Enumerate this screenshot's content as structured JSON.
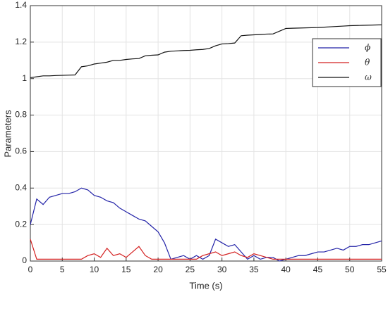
{
  "chart_data": {
    "type": "line",
    "xlabel": "Time (s)",
    "ylabel": "Parameters",
    "x": [
      0,
      1,
      2,
      3,
      4,
      5,
      6,
      7,
      8,
      9,
      10,
      11,
      12,
      13,
      14,
      15,
      16,
      17,
      18,
      19,
      20,
      21,
      22,
      23,
      24,
      25,
      26,
      27,
      28,
      29,
      30,
      31,
      32,
      33,
      34,
      35,
      36,
      37,
      38,
      39,
      40,
      41,
      42,
      43,
      44,
      45,
      46,
      47,
      48,
      49,
      50,
      51,
      52,
      53,
      54,
      55
    ],
    "series": [
      {
        "name": "ϕ",
        "color": "#2323a8",
        "values": [
          0.2,
          0.34,
          0.31,
          0.35,
          0.36,
          0.37,
          0.37,
          0.38,
          0.4,
          0.39,
          0.36,
          0.35,
          0.33,
          0.32,
          0.29,
          0.27,
          0.25,
          0.23,
          0.22,
          0.19,
          0.16,
          0.1,
          0.01,
          0.02,
          0.03,
          0.01,
          0.03,
          0.01,
          0.03,
          0.12,
          0.1,
          0.08,
          0.09,
          0.05,
          0.01,
          0.03,
          0.01,
          0.02,
          0.02,
          0.0,
          0.01,
          0.02,
          0.03,
          0.03,
          0.04,
          0.05,
          0.05,
          0.06,
          0.07,
          0.06,
          0.08,
          0.08,
          0.09,
          0.09,
          0.1,
          0.11
        ]
      },
      {
        "name": "θ",
        "color": "#d42020",
        "values": [
          0.12,
          0.01,
          0.01,
          0.01,
          0.01,
          0.01,
          0.01,
          0.01,
          0.01,
          0.03,
          0.04,
          0.02,
          0.07,
          0.03,
          0.04,
          0.02,
          0.05,
          0.08,
          0.03,
          0.01,
          0.01,
          0.01,
          0.01,
          0.01,
          0.01,
          0.01,
          0.01,
          0.03,
          0.04,
          0.05,
          0.03,
          0.04,
          0.05,
          0.03,
          0.02,
          0.04,
          0.03,
          0.02,
          0.01,
          0.01,
          0.01,
          0.01,
          0.01,
          0.01,
          0.01,
          0.01,
          0.01,
          0.01,
          0.01,
          0.01,
          0.01,
          0.01,
          0.01,
          0.01,
          0.01,
          0.01
        ]
      },
      {
        "name": "ω",
        "color": "#111111",
        "values": [
          1.005,
          1.01,
          1.015,
          1.015,
          1.017,
          1.018,
          1.019,
          1.02,
          1.065,
          1.07,
          1.08,
          1.085,
          1.09,
          1.1,
          1.1,
          1.105,
          1.108,
          1.11,
          1.125,
          1.128,
          1.13,
          1.145,
          1.15,
          1.152,
          1.154,
          1.155,
          1.158,
          1.16,
          1.165,
          1.18,
          1.19,
          1.192,
          1.195,
          1.235,
          1.238,
          1.24,
          1.242,
          1.244,
          1.245,
          1.26,
          1.275,
          1.276,
          1.277,
          1.278,
          1.279,
          1.28,
          1.282,
          1.284,
          1.286,
          1.288,
          1.29,
          1.291,
          1.292,
          1.293,
          1.294,
          1.295
        ]
      }
    ],
    "xlim": [
      0,
      55
    ],
    "xticks": [
      0,
      5,
      10,
      15,
      20,
      25,
      30,
      35,
      40,
      45,
      50,
      55
    ],
    "ylim": [
      0,
      1.4
    ],
    "yticks": [
      0,
      0.2,
      0.4,
      0.6,
      0.8,
      1,
      1.2,
      1.4
    ],
    "grid": true,
    "legend": "upper right"
  }
}
